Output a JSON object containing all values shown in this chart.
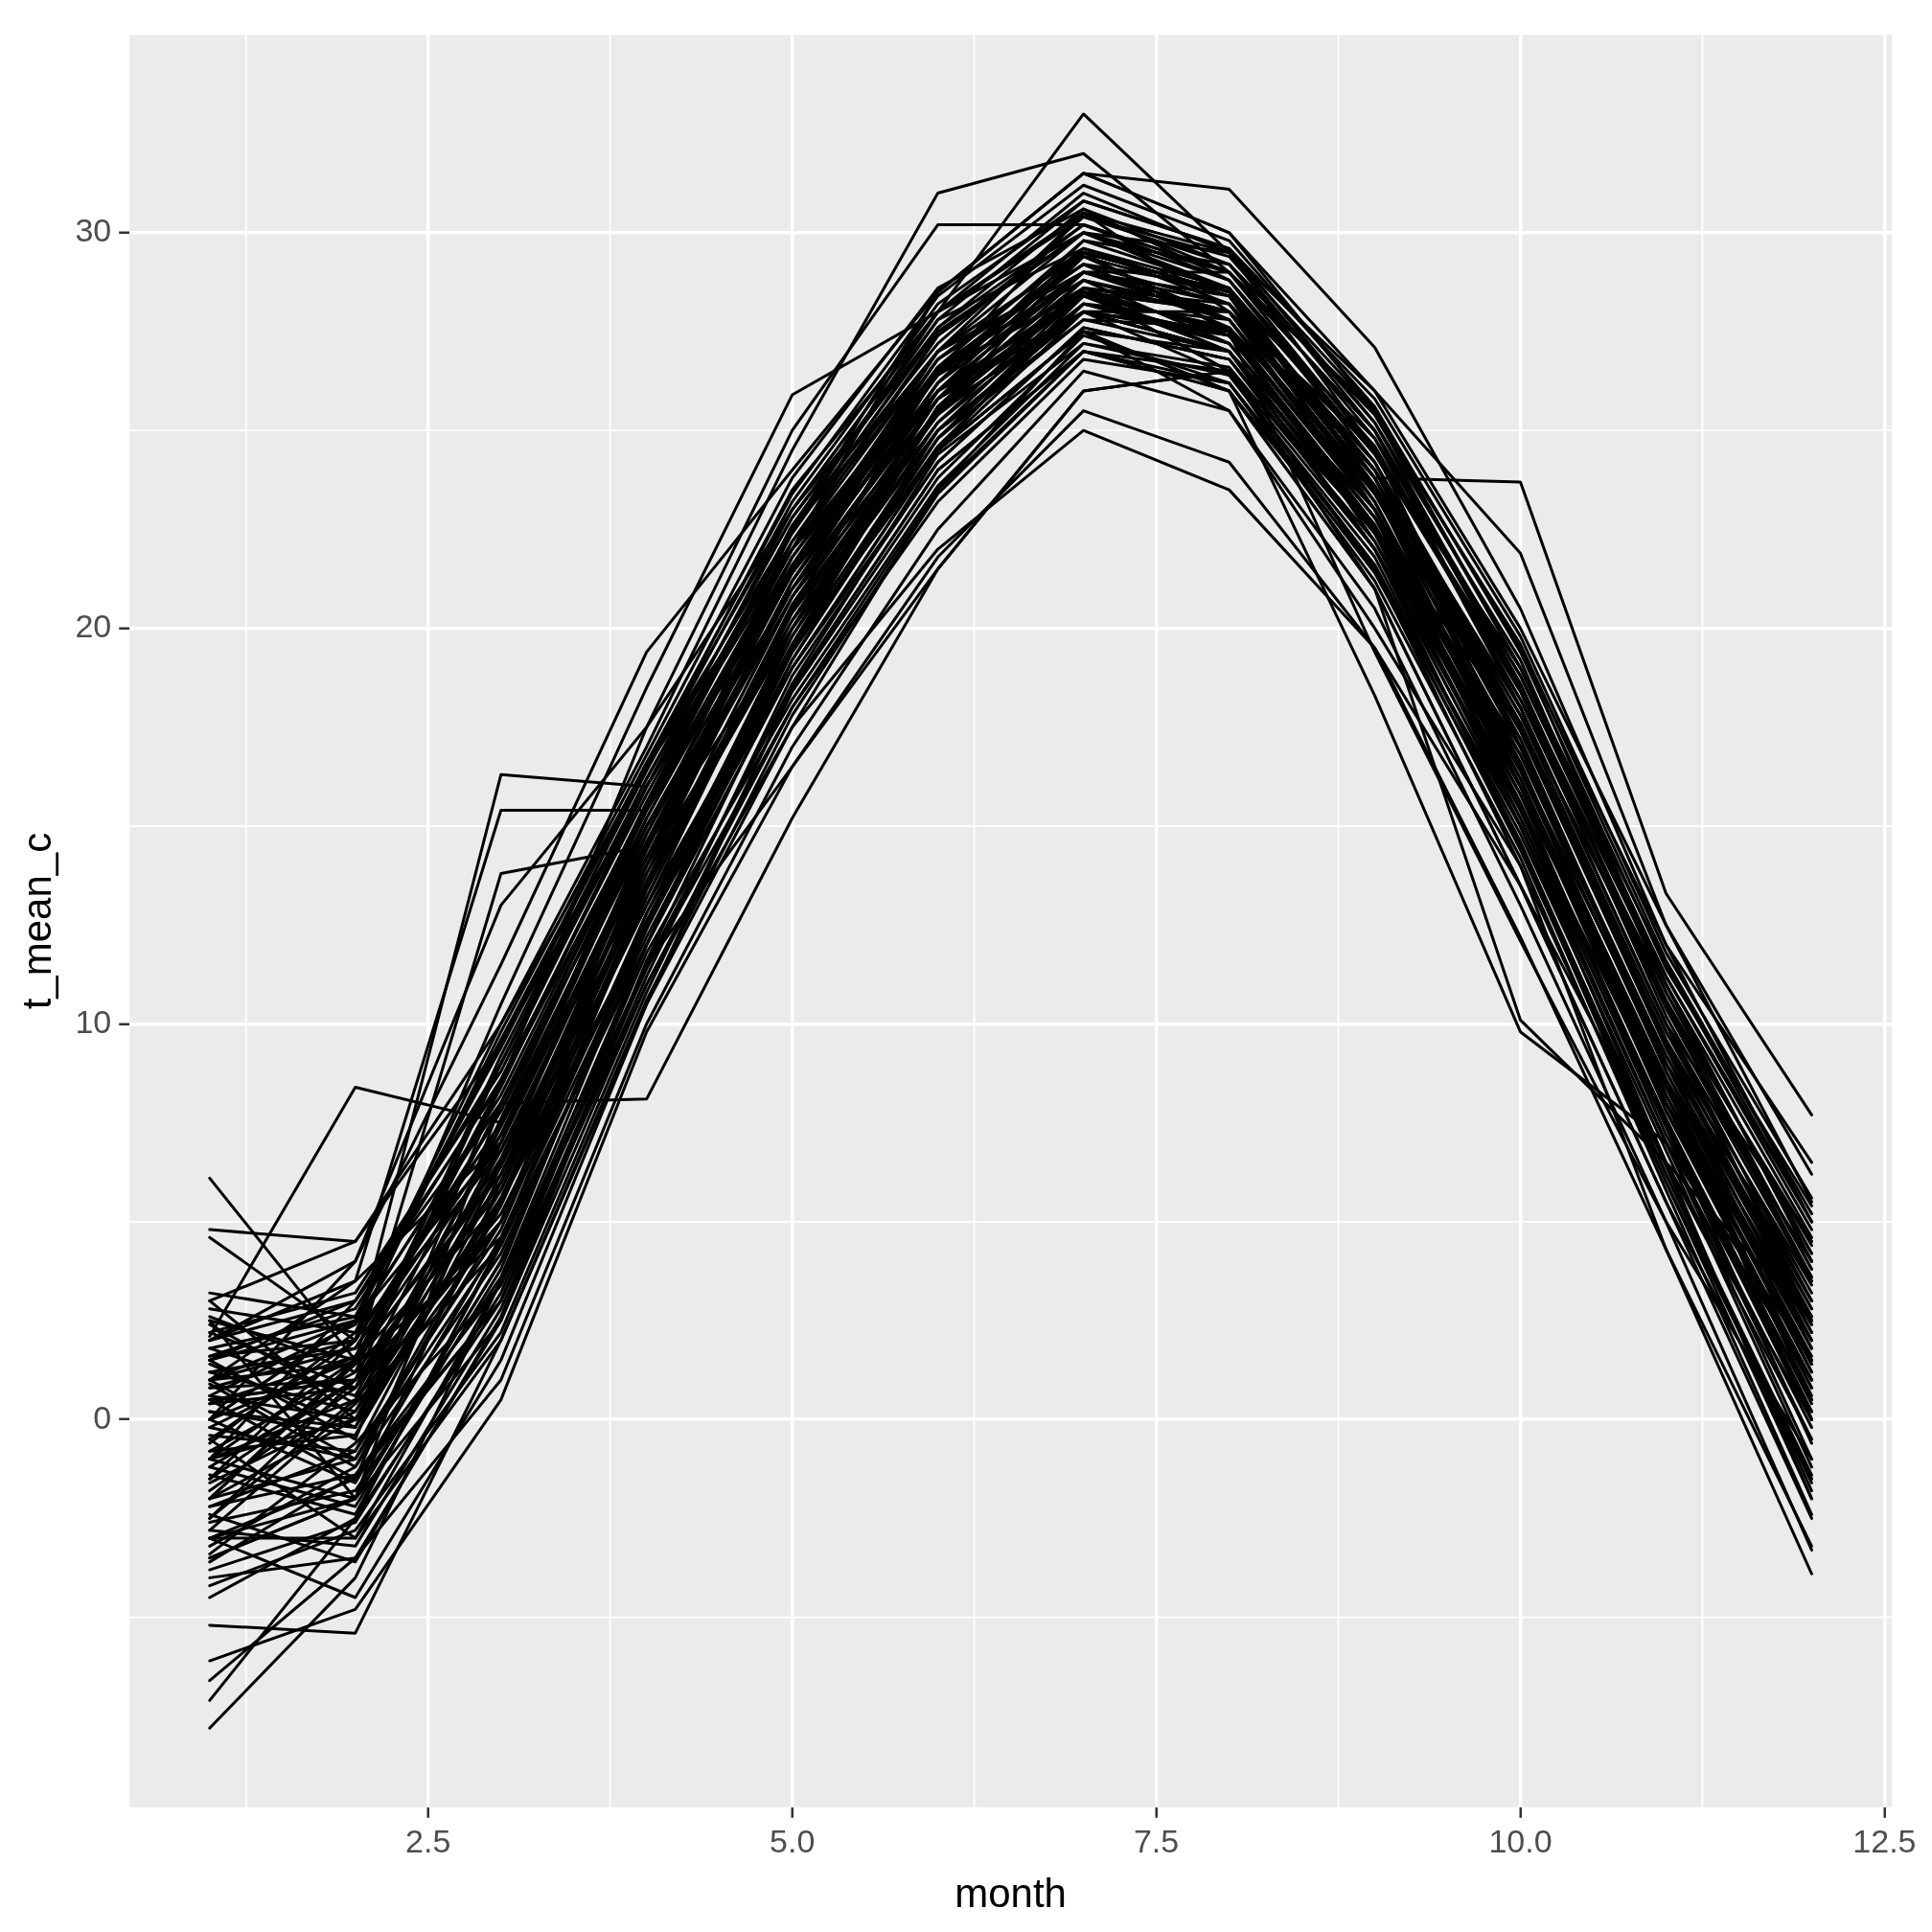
{
  "chart_data": {
    "type": "line",
    "xlabel": "month",
    "ylabel": "t_mean_c",
    "color": "#000000",
    "grid": true,
    "legend": false,
    "x": [
      1,
      2,
      3,
      4,
      5,
      6,
      7,
      8,
      9,
      10,
      11,
      12
    ],
    "xlim": [
      0.45,
      12.55
    ],
    "xticks": [
      2.5,
      {
        "value": 5,
        "label": "5.0"
      },
      {
        "value": 7.5,
        "label": "7.5"
      },
      {
        "value": 10,
        "label": "10.0"
      },
      12.5
    ],
    "ylim": [
      -9.8,
      35
    ],
    "yticks": [
      0,
      10,
      20,
      30
    ],
    "series": [
      {
        "values": [
          2.1,
          8.4,
          7.5,
          13.5,
          20.5,
          26.5,
          29.5,
          28.5,
          24.0,
          17.5,
          9.5,
          3.0
        ]
      },
      {
        "values": [
          0.5,
          1.0,
          9.0,
          16.5,
          23.5,
          28.0,
          33.0,
          29.5,
          25.0,
          18.0,
          10.0,
          2.5
        ]
      },
      {
        "values": [
          1.5,
          2.5,
          10.0,
          17.0,
          24.5,
          31.0,
          32.0,
          29.0,
          24.5,
          19.0,
          11.0,
          4.0
        ]
      },
      {
        "values": [
          -1.0,
          3.0,
          8.5,
          16.0,
          22.5,
          28.5,
          31.5,
          31.1,
          27.1,
          20.5,
          12.0,
          5.0
        ]
      },
      {
        "values": [
          -0.5,
          2.0,
          16.3,
          16.0,
          22.0,
          26.5,
          29.0,
          28.0,
          23.0,
          16.0,
          8.0,
          1.0
        ]
      },
      {
        "values": [
          1.0,
          3.5,
          15.4,
          15.4,
          21.5,
          27.0,
          29.5,
          27.5,
          22.5,
          15.5,
          7.5,
          0.5
        ]
      },
      {
        "values": [
          -2.0,
          1.5,
          13.8,
          14.5,
          20.0,
          25.5,
          28.0,
          27.0,
          22.0,
          14.5,
          6.5,
          0.0
        ]
      },
      {
        "values": [
          0.0,
          4.0,
          13.0,
          17.5,
          23.0,
          27.5,
          30.0,
          28.5,
          24.0,
          17.0,
          9.0,
          2.0
        ]
      },
      {
        "values": [
          -3.5,
          -2.0,
          8.0,
          8.1,
          15.2,
          21.5,
          26.0,
          26.5,
          22.0,
          15.0,
          7.0,
          -0.5
        ]
      },
      {
        "values": [
          6.1,
          1.5,
          5.5,
          12.5,
          19.5,
          25.0,
          28.5,
          27.0,
          22.5,
          16.5,
          9.0,
          3.5
        ]
      },
      {
        "values": [
          -7.8,
          -4.0,
          3.5,
          11.5,
          18.5,
          24.0,
          27.0,
          26.5,
          21.5,
          14.0,
          6.0,
          -1.5
        ]
      },
      {
        "values": [
          -5.2,
          -5.4,
          2.0,
          10.5,
          17.5,
          23.5,
          27.5,
          26.0,
          21.0,
          13.5,
          5.5,
          -2.5
        ]
      },
      {
        "values": [
          -7.1,
          -2.5,
          4.5,
          12.0,
          19.0,
          24.5,
          28.0,
          27.0,
          22.0,
          15.5,
          7.5,
          0.5
        ]
      },
      {
        "values": [
          -6.6,
          -3.5,
          1.0,
          10.0,
          17.0,
          22.5,
          26.5,
          25.5,
          20.5,
          13.0,
          5.0,
          -3.3
        ]
      },
      {
        "values": [
          -6.1,
          -4.8,
          0.5,
          9.8,
          16.5,
          21.8,
          25.5,
          24.2,
          19.5,
          12.2,
          4.3,
          -3.9
        ]
      },
      {
        "values": [
          -3.0,
          -1.5,
          3.0,
          11.0,
          17.5,
          22.0,
          25.0,
          23.5,
          19.5,
          13.5,
          6.5,
          -0.5
        ]
      },
      {
        "values": [
          -2.5,
          0.5,
          5.0,
          12.5,
          19.5,
          24.5,
          27.5,
          26.0,
          18.3,
          9.8,
          7.0,
          1.5
        ]
      },
      {
        "values": [
          -1.5,
          1.0,
          6.0,
          13.5,
          20.0,
          25.5,
          28.0,
          27.5,
          19.4,
          12.1,
          5.0,
          -1.0
        ]
      },
      {
        "values": [
          0.0,
          2.5,
          7.0,
          14.5,
          21.0,
          26.5,
          28.5,
          28.0,
          23.8,
          23.7,
          13.3,
          7.7
        ]
      },
      {
        "values": [
          -1.0,
          1.5,
          6.5,
          13.5,
          20.5,
          25.5,
          28.5,
          26.5,
          21.0,
          10.1,
          6.5,
          2.5
        ]
      },
      {
        "values": [
          -2.0,
          0.0,
          5.5,
          13.0,
          19.5,
          24.5,
          27.5,
          25.5,
          20.0,
          14.0,
          4.3,
          -3.2
        ]
      },
      {
        "values": [
          1.5,
          3.0,
          8.0,
          15.5,
          22.5,
          27.0,
          30.5,
          29.0,
          25.5,
          19.5,
          12.0,
          6.5
        ]
      },
      {
        "values": [
          3.0,
          4.5,
          9.5,
          16.0,
          23.0,
          28.0,
          30.0,
          29.5,
          26.0,
          21.9,
          12.5,
          6.2
        ]
      },
      {
        "values": [
          4.8,
          4.5,
          10.0,
          16.5,
          22.0,
          26.0,
          29.0,
          28.0,
          24.5,
          18.5,
          10.5,
          4.5
        ]
      },
      {
        "values": [
          4.6,
          2.0,
          7.5,
          15.0,
          21.5,
          26.5,
          29.5,
          28.5,
          23.5,
          17.5,
          9.5,
          3.0
        ]
      },
      {
        "values": [
          -1.0,
          0.5,
          6.0,
          14.0,
          21.0,
          26.0,
          29.0,
          28.0,
          23.5,
          16.5,
          8.5,
          1.5
        ]
      },
      {
        "values": [
          0.5,
          -1.5,
          7.0,
          15.0,
          21.5,
          26.5,
          28.5,
          27.5,
          22.5,
          17.0,
          9.0,
          2.5
        ]
      },
      {
        "values": [
          -2.5,
          1.0,
          5.0,
          13.5,
          20.0,
          25.0,
          28.0,
          27.0,
          23.0,
          15.5,
          7.5,
          0.0
        ]
      },
      {
        "values": [
          1.5,
          -0.5,
          8.5,
          15.5,
          22.0,
          27.0,
          29.5,
          28.5,
          24.0,
          18.0,
          10.0,
          3.5
        ]
      },
      {
        "values": [
          -3.5,
          -2.0,
          4.0,
          12.5,
          19.0,
          24.5,
          27.5,
          27.0,
          22.0,
          15.0,
          7.0,
          -1.0
        ]
      },
      {
        "values": [
          2.5,
          1.5,
          9.0,
          16.0,
          22.5,
          27.5,
          30.0,
          29.0,
          25.0,
          18.5,
          11.0,
          4.0
        ]
      },
      {
        "values": [
          -0.5,
          -3.0,
          3.5,
          12.0,
          19.5,
          25.5,
          29.5,
          28.5,
          23.0,
          16.0,
          8.0,
          1.0
        ]
      },
      {
        "values": [
          3.0,
          0.0,
          6.5,
          14.5,
          21.0,
          26.0,
          28.0,
          27.0,
          22.5,
          17.5,
          9.5,
          3.0
        ]
      },
      {
        "values": [
          -4.0,
          -3.5,
          2.5,
          11.0,
          18.0,
          23.5,
          27.0,
          26.0,
          21.5,
          14.5,
          6.0,
          -2.0
        ]
      },
      {
        "values": [
          0.0,
          2.5,
          9.5,
          16.5,
          22.5,
          27.0,
          29.0,
          29.0,
          24.5,
          17.0,
          9.0,
          2.0
        ]
      },
      {
        "values": [
          1.0,
          -1.0,
          5.5,
          13.0,
          20.5,
          26.5,
          30.5,
          28.0,
          23.5,
          16.0,
          8.5,
          0.5
        ]
      },
      {
        "values": [
          -1.5,
          2.0,
          7.5,
          14.0,
          20.0,
          25.0,
          28.0,
          27.5,
          23.0,
          16.5,
          8.0,
          2.0
        ]
      },
      {
        "values": [
          2.0,
          3.5,
          7.0,
          15.5,
          22.0,
          28.5,
          31.5,
          30.0,
          25.5,
          19.0,
          11.5,
          5.0
        ]
      },
      {
        "values": [
          -3.0,
          -4.5,
          1.5,
          10.5,
          18.5,
          24.0,
          27.0,
          26.0,
          21.0,
          13.5,
          5.5,
          -1.5
        ]
      },
      {
        "values": [
          0.5,
          1.0,
          6.0,
          14.5,
          21.5,
          26.0,
          29.5,
          27.5,
          22.5,
          15.0,
          7.0,
          1.0
        ]
      },
      {
        "values": [
          -2.0,
          -1.0,
          4.5,
          13.5,
          20.5,
          25.5,
          28.5,
          27.0,
          22.0,
          15.5,
          8.0,
          1.5
        ]
      },
      {
        "values": [
          1.0,
          2.5,
          8.0,
          15.0,
          21.0,
          25.5,
          28.0,
          28.0,
          24.0,
          18.0,
          10.0,
          4.5
        ]
      },
      {
        "values": [
          -1.0,
          0.0,
          5.0,
          14.0,
          22.5,
          28.0,
          31.0,
          29.5,
          24.5,
          17.0,
          9.0,
          2.5
        ]
      },
      {
        "values": [
          2.5,
          -2.0,
          6.0,
          13.0,
          19.5,
          24.5,
          28.5,
          28.0,
          23.5,
          16.5,
          8.5,
          0.0
        ]
      },
      {
        "values": [
          -4.5,
          -2.5,
          3.0,
          12.0,
          20.0,
          26.0,
          28.5,
          26.5,
          21.5,
          15.0,
          6.5,
          -2.0
        ]
      },
      {
        "values": [
          0.0,
          1.5,
          8.5,
          17.5,
          25.0,
          30.2,
          30.2,
          29.0,
          25.0,
          18.5,
          10.5,
          3.5
        ]
      },
      {
        "values": [
          -3.0,
          -2.0,
          2.5,
          11.5,
          16.5,
          21.5,
          26.0,
          26.5,
          22.5,
          15.5,
          7.5,
          0.0
        ]
      },
      {
        "values": [
          1.0,
          2.0,
          10.5,
          18.5,
          25.9,
          28.0,
          30.5,
          29.5,
          25.5,
          19.5,
          11.0,
          4.0
        ]
      },
      {
        "values": [
          2.0,
          4.0,
          11.5,
          19.4,
          24.0,
          28.5,
          31.5,
          30.0,
          26.0,
          20.0,
          12.5,
          5.5
        ]
      },
      {
        "values": [
          -3.8,
          -2.6,
          3.2,
          11.8,
          18.2,
          23.6,
          27.2,
          26.4,
          21.8,
          14.6,
          6.4,
          -1.8
        ]
      },
      {
        "values": [
          2.8,
          2.2,
          9.8,
          16.8,
          23.8,
          28.6,
          30.6,
          29.2,
          25.4,
          19.6,
          11.6,
          5.2
        ]
      },
      {
        "values": [
          -2.2,
          -0.8,
          4.8,
          13.2,
          20.6,
          25.8,
          28.8,
          27.8,
          23.2,
          16.2,
          8.2,
          1.2
        ]
      },
      {
        "values": [
          0.8,
          1.8,
          7.8,
          15.2,
          21.8,
          26.8,
          29.2,
          28.2,
          24.2,
          17.8,
          9.8,
          3.2
        ]
      },
      {
        "values": [
          -1.2,
          -2.2,
          3.8,
          12.8,
          19.8,
          25.2,
          28.6,
          27.4,
          22.6,
          15.4,
          7.2,
          0.2
        ]
      },
      {
        "values": [
          1.8,
          0.6,
          7.2,
          14.2,
          20.8,
          25.4,
          28.2,
          27.2,
          22.8,
          16.8,
          9.2,
          2.8
        ]
      },
      {
        "values": [
          -3.2,
          -1.2,
          4.2,
          12.2,
          19.2,
          24.8,
          27.8,
          27.6,
          23.6,
          16.4,
          8.6,
          1.8
        ]
      },
      {
        "values": [
          0.2,
          -0.4,
          6.4,
          14.8,
          22.2,
          27.4,
          30.2,
          28.8,
          24.6,
          18.2,
          10.4,
          3.8
        ]
      },
      {
        "values": [
          -0.8,
          1.2,
          5.8,
          13.8,
          21.2,
          26.2,
          29.8,
          28.6,
          23.8,
          16.6,
          7.8,
          0.8
        ]
      },
      {
        "values": [
          2.2,
          3.2,
          8.8,
          16.2,
          22.8,
          27.8,
          29.6,
          28.4,
          24.8,
          18.8,
          11.2,
          4.8
        ]
      },
      {
        "values": [
          -2.8,
          -3.2,
          2.8,
          11.2,
          18.8,
          24.2,
          27.6,
          26.8,
          22.4,
          15.2,
          7.4,
          -0.6
        ]
      },
      {
        "values": [
          1.2,
          0.2,
          6.8,
          14.4,
          21.4,
          26.4,
          29.4,
          27.8,
          23.4,
          17.2,
          8.8,
          2.2
        ]
      },
      {
        "values": [
          -1.8,
          0.8,
          5.2,
          12.6,
          19.6,
          25.6,
          28.4,
          27.6,
          22.2,
          15.8,
          8.4,
          1.6
        ]
      },
      {
        "values": [
          0.6,
          2.4,
          8.2,
          15.6,
          22.6,
          27.2,
          30.4,
          29.4,
          25.2,
          19.2,
          10.8,
          4.2
        ]
      },
      {
        "values": [
          -4.2,
          -2.8,
          2.2,
          10.8,
          18.4,
          23.8,
          27.4,
          26.2,
          21.2,
          14.2,
          5.8,
          -2.4
        ]
      },
      {
        "values": [
          1.4,
          -0.2,
          7.6,
          15.4,
          21.6,
          26.6,
          29.2,
          28.6,
          23.8,
          17.6,
          9.6,
          3.4
        ]
      },
      {
        "values": [
          -0.2,
          1.6,
          6.2,
          13.6,
          20.4,
          25.4,
          28.8,
          27.2,
          22.8,
          16.4,
          8.6,
          2.4
        ]
      },
      {
        "values": [
          2.6,
          1.2,
          9.2,
          16.4,
          23.2,
          28.2,
          30.8,
          29.6,
          25.8,
          19.8,
          11.8,
          5.6
        ]
      },
      {
        "values": [
          -2.6,
          -1.8,
          3.6,
          12.4,
          19.4,
          24.6,
          28.2,
          27.4,
          22.6,
          15.6,
          7.6,
          0.4
        ]
      },
      {
        "values": [
          0.4,
          0.8,
          6.6,
          14.6,
          21.6,
          26.4,
          28.6,
          28.2,
          23.6,
          17.4,
          9.4,
          2.6
        ]
      },
      {
        "values": [
          -1.4,
          -2.4,
          4.4,
          13.4,
          20.2,
          25.8,
          29.4,
          28.4,
          23.2,
          16.2,
          8.2,
          1.4
        ]
      },
      {
        "values": [
          1.6,
          2.8,
          8.6,
          15.8,
          22.4,
          27.6,
          30.6,
          28.8,
          24.4,
          18.4,
          10.2,
          3.6
        ]
      },
      {
        "values": [
          -3.4,
          -0.6,
          3.4,
          11.4,
          18.6,
          24.4,
          27.2,
          26.6,
          22.2,
          15.2,
          7.0,
          -0.2
        ]
      },
      {
        "values": [
          0.9,
          -1.2,
          5.4,
          13.6,
          20.8,
          26.2,
          29.6,
          28.2,
          24.2,
          17.6,
          9.6,
          2.8
        ]
      },
      {
        "values": [
          2.4,
          0.4,
          7.4,
          14.8,
          21.4,
          26.0,
          28.4,
          27.6,
          23.6,
          17.6,
          9.8,
          4.0
        ]
      },
      {
        "values": [
          -0.6,
          2.2,
          6.8,
          14.2,
          21.2,
          26.6,
          29.8,
          29.2,
          24.8,
          18.0,
          10.0,
          3.0
        ]
      },
      {
        "values": [
          -2.4,
          -3.6,
          2.6,
          11.6,
          19.2,
          25.0,
          28.0,
          26.4,
          21.6,
          14.8,
          6.8,
          -1.2
        ]
      },
      {
        "values": [
          1.0,
          1.4,
          8.4,
          16.0,
          22.2,
          27.0,
          29.0,
          28.0,
          24.0,
          17.8,
          10.6,
          4.4
        ]
      },
      {
        "values": [
          -1.6,
          0.2,
          5.6,
          13.2,
          20.4,
          25.2,
          28.2,
          27.8,
          23.4,
          16.8,
          8.8,
          1.8
        ]
      },
      {
        "values": [
          0.0,
          -1.6,
          4.6,
          12.8,
          19.6,
          24.8,
          28.4,
          27.0,
          22.4,
          16.0,
          8.0,
          0.6
        ]
      },
      {
        "values": [
          3.2,
          2.6,
          9.4,
          16.6,
          23.4,
          28.4,
          31.2,
          29.8,
          25.6,
          19.4,
          11.4,
          5.4
        ]
      },
      {
        "values": [
          -3.6,
          -1.4,
          3.0,
          11.4,
          18.0,
          23.2,
          26.8,
          26.2,
          21.6,
          14.4,
          6.2,
          -1.4
        ]
      },
      {
        "values": [
          1.2,
          1.8,
          7.2,
          15.2,
          22.0,
          27.4,
          30.0,
          28.6,
          24.4,
          18.6,
          10.4,
          3.6
        ]
      },
      {
        "values": [
          -0.4,
          -0.8,
          6.2,
          14.4,
          21.8,
          26.8,
          29.2,
          27.6,
          23.0,
          16.6,
          8.4,
          1.2
        ]
      },
      {
        "values": [
          -2.0,
          1.4,
          4.6,
          12.4,
          19.8,
          25.6,
          28.6,
          28.0,
          23.8,
          17.0,
          9.2,
          2.6
        ]
      },
      {
        "values": [
          0.6,
          0.0,
          7.0,
          15.0,
          21.0,
          25.8,
          28.0,
          27.4,
          22.8,
          16.2,
          8.0,
          0.8
        ]
      },
      {
        "values": [
          2.0,
          3.0,
          9.0,
          16.2,
          22.8,
          27.6,
          30.2,
          29.0,
          25.0,
          18.8,
          11.0,
          4.6
        ]
      },
      {
        "values": [
          -1.0,
          -2.0,
          4.0,
          12.6,
          20.0,
          25.6,
          29.0,
          28.2,
          23.2,
          16.4,
          8.6,
          2.0
        ]
      },
      {
        "values": [
          -2.8,
          0.4,
          4.4,
          12.0,
          19.0,
          24.2,
          27.6,
          26.8,
          22.0,
          15.4,
          7.6,
          0.2
        ]
      },
      {
        "values": [
          1.6,
          2.0,
          7.8,
          15.6,
          22.6,
          27.8,
          30.8,
          29.6,
          25.2,
          18.6,
          10.6,
          3.8
        ]
      },
      {
        "values": [
          -0.2,
          -1.0,
          5.0,
          13.4,
          20.6,
          25.8,
          28.4,
          27.2,
          22.6,
          16.0,
          7.8,
          1.0
        ]
      },
      {
        "values": [
          0.8,
          1.0,
          6.4,
          14.0,
          21.2,
          26.2,
          29.0,
          28.4,
          24.0,
          17.2,
          9.0,
          2.4
        ]
      },
      {
        "values": [
          -3.0,
          -3.0,
          2.0,
          10.6,
          17.8,
          23.4,
          27.0,
          26.2,
          21.4,
          14.6,
          6.2,
          -1.6
        ]
      },
      {
        "values": [
          2.2,
          0.8,
          8.0,
          15.4,
          21.8,
          26.6,
          28.8,
          28.0,
          24.6,
          18.2,
          10.8,
          4.2
        ]
      },
      {
        "values": [
          -1.2,
          1.0,
          6.0,
          14.2,
          21.6,
          27.0,
          30.0,
          28.8,
          24.2,
          17.4,
          9.4,
          2.2
        ]
      },
      {
        "values": [
          0.2,
          -0.2,
          5.6,
          13.8,
          20.2,
          25.0,
          27.8,
          27.0,
          22.6,
          16.6,
          8.2,
          1.4
        ]
      },
      {
        "values": [
          1.8,
          2.6,
          9.6,
          16.6,
          23.0,
          28.0,
          30.4,
          29.2,
          25.4,
          19.0,
          11.2,
          5.0
        ]
      },
      {
        "values": [
          -2.2,
          -1.4,
          3.4,
          12.0,
          19.4,
          24.8,
          28.2,
          27.4,
          22.8,
          15.8,
          7.4,
          0.0
        ]
      },
      {
        "values": [
          0.4,
          1.6,
          7.0,
          14.6,
          21.4,
          26.8,
          29.6,
          28.6,
          23.6,
          17.0,
          9.0,
          2.6
        ]
      },
      {
        "values": [
          -0.8,
          -0.4,
          5.8,
          13.6,
          20.8,
          26.0,
          29.0,
          27.8,
          23.0,
          16.4,
          8.4,
          1.8
        ]
      }
    ]
  }
}
